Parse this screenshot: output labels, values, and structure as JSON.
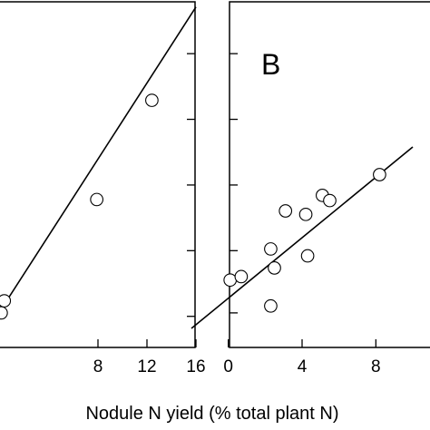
{
  "chart_data": [
    {
      "type": "scatter",
      "panel_label": "",
      "xlim": [
        0,
        16
      ],
      "ylim": [
        0,
        100
      ],
      "x_ticks": [
        8,
        12,
        16
      ],
      "x_tick_labels": [
        "8",
        "12",
        "16"
      ],
      "y_ticks": [
        9,
        28,
        47,
        66,
        85
      ],
      "series": [
        {
          "points": [
            {
              "x": 0.1,
              "y": 10
            },
            {
              "x": 0.35,
              "y": 13.5
            },
            {
              "x": 7.9,
              "y": 42.8
            },
            {
              "x": 12.4,
              "y": 71.5
            }
          ]
        }
      ],
      "fit_line": {
        "x": [
          0,
          16
        ],
        "y": [
          10.5,
          98.5
        ]
      },
      "grid": false,
      "legend": "none"
    },
    {
      "type": "scatter",
      "panel_label": "B",
      "xlim": [
        -2,
        10
      ],
      "ylim": [
        0,
        100
      ],
      "x_ticks": [
        0,
        4,
        8
      ],
      "x_tick_labels": [
        "0",
        "4",
        "8"
      ],
      "y_ticks": [
        10,
        28,
        47,
        66,
        85
      ],
      "series": [
        {
          "points": [
            {
              "x": 0.1,
              "y": 19.5
            },
            {
              "x": 0.7,
              "y": 20.5
            },
            {
              "x": 2.3,
              "y": 12.0
            },
            {
              "x": 2.3,
              "y": 28.5
            },
            {
              "x": 2.5,
              "y": 23.0
            },
            {
              "x": 3.1,
              "y": 39.5
            },
            {
              "x": 4.2,
              "y": 38.5
            },
            {
              "x": 4.3,
              "y": 26.5
            },
            {
              "x": 5.1,
              "y": 44.0
            },
            {
              "x": 5.5,
              "y": 42.5
            },
            {
              "x": 8.2,
              "y": 50.0
            }
          ]
        }
      ],
      "fit_line": {
        "x": [
          -2,
          10
        ],
        "y": [
          5.5,
          58.0
        ]
      },
      "grid": false,
      "legend": "none"
    }
  ],
  "xlabel": "Nodule N yield (% total plant N)"
}
